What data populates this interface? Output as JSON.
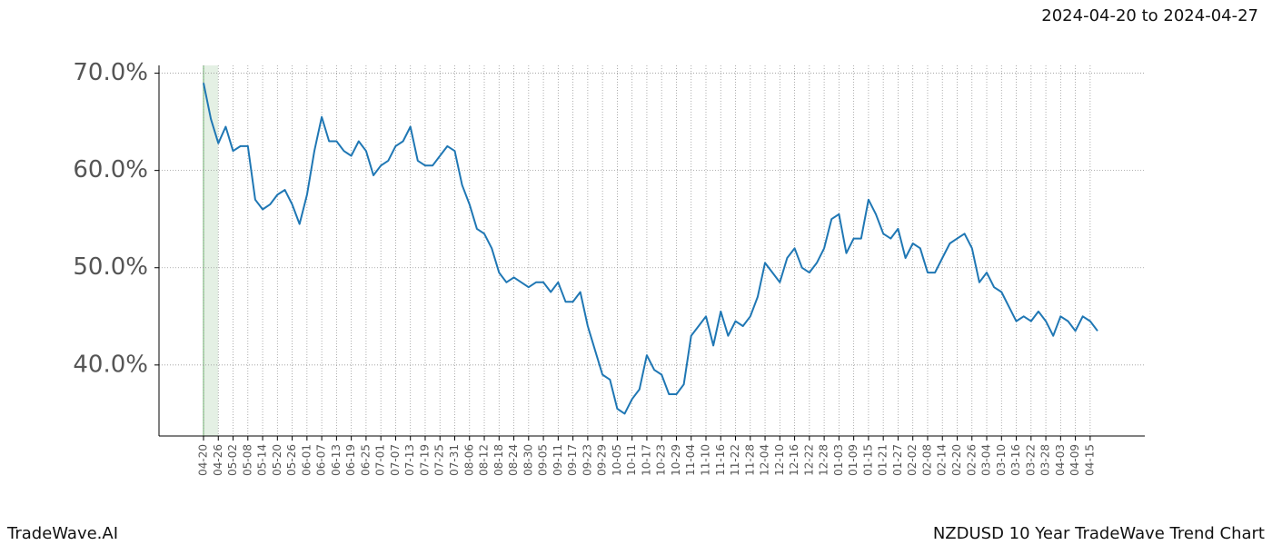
{
  "header": "2024-04-20 to 2024-04-27",
  "footer_left": "TradeWave.AI",
  "footer_right": "NZDUSD 10 Year TradeWave Trend Chart",
  "chart_data": {
    "type": "line",
    "categories": [
      "04-20",
      null,
      "04-26",
      null,
      "05-02",
      null,
      "05-08",
      null,
      "05-14",
      null,
      "05-20",
      null,
      "05-26",
      null,
      "06-01",
      null,
      "06-07",
      null,
      "06-13",
      null,
      "06-19",
      null,
      "06-25",
      null,
      "07-01",
      null,
      "07-07",
      null,
      "07-13",
      null,
      "07-19",
      null,
      "07-25",
      null,
      "07-31",
      null,
      "08-06",
      null,
      "08-12",
      null,
      "08-18",
      null,
      "08-24",
      null,
      "08-30",
      null,
      "09-05",
      null,
      "09-11",
      null,
      "09-17",
      null,
      "09-23",
      null,
      "09-29",
      null,
      "10-05",
      null,
      "10-11",
      null,
      "10-17",
      null,
      "10-23",
      null,
      "10-29",
      null,
      "11-04",
      null,
      "11-10",
      null,
      "11-16",
      null,
      "11-22",
      null,
      "11-28",
      null,
      "12-04",
      null,
      "12-10",
      null,
      "12-16",
      null,
      "12-22",
      null,
      "12-28",
      null,
      "01-03",
      null,
      "01-09",
      null,
      "01-15",
      null,
      "01-21",
      null,
      "01-27",
      null,
      "02-02",
      null,
      "02-08",
      null,
      "02-14",
      null,
      "02-20",
      null,
      "02-26",
      null,
      "03-04",
      null,
      "03-10",
      null,
      "03-16",
      null,
      "03-22",
      null,
      "03-28",
      null,
      "04-03",
      null,
      "04-09",
      null,
      "04-15",
      null
    ],
    "series": [
      {
        "color": "#1f77b4",
        "values": [
          69.0,
          65.3,
          62.8,
          64.5,
          62.0,
          62.5,
          62.5,
          57.0,
          56.0,
          56.5,
          57.5,
          58.0,
          56.5,
          54.5,
          57.5,
          62.0,
          65.5,
          63.0,
          63.0,
          62.0,
          61.5,
          63.0,
          62.0,
          59.5,
          60.5,
          61.0,
          62.5,
          63.0,
          64.5,
          61.0,
          60.5,
          60.5,
          61.5,
          62.5,
          62.0,
          58.5,
          56.5,
          54.0,
          53.5,
          52.0,
          49.5,
          48.5,
          49.0,
          48.5,
          48.0,
          48.5,
          48.5,
          47.5,
          48.5,
          46.5,
          46.5,
          47.5,
          44.0,
          41.5,
          39.0,
          38.5,
          35.5,
          35.0,
          36.5,
          37.5,
          41.0,
          39.5,
          39.0,
          37.0,
          37.0,
          38.0,
          43.0,
          44.0,
          45.0,
          42.0,
          45.5,
          43.0,
          44.5,
          44.0,
          45.0,
          47.0,
          50.5,
          49.5,
          48.5,
          51.0,
          52.0,
          50.0,
          49.5,
          50.5,
          52.0,
          55.0,
          55.5,
          51.5,
          53.0,
          53.0,
          57.0,
          55.5,
          53.5,
          53.0,
          54.0,
          51.0,
          52.5,
          52.0,
          49.5,
          49.5,
          51.0,
          52.5,
          53.0,
          53.5,
          52.0,
          48.5,
          49.5,
          48.0,
          47.5,
          46.0,
          44.5,
          45.0,
          44.5,
          45.5,
          44.5,
          43.0,
          45.0,
          44.5,
          43.5,
          45.0,
          44.5,
          43.5
        ]
      }
    ],
    "ylim": [
      32.7,
      70.8
    ],
    "yticks": [
      {
        "value": 40,
        "label": "40.0%"
      },
      {
        "value": 50,
        "label": "50.0%"
      },
      {
        "value": 60,
        "label": "60.0%"
      },
      {
        "value": 70,
        "label": "70.0%"
      }
    ],
    "grid": true,
    "highlight_span": [
      "04-20",
      "04-26"
    ],
    "highlight_color": "#d8ead8"
  }
}
